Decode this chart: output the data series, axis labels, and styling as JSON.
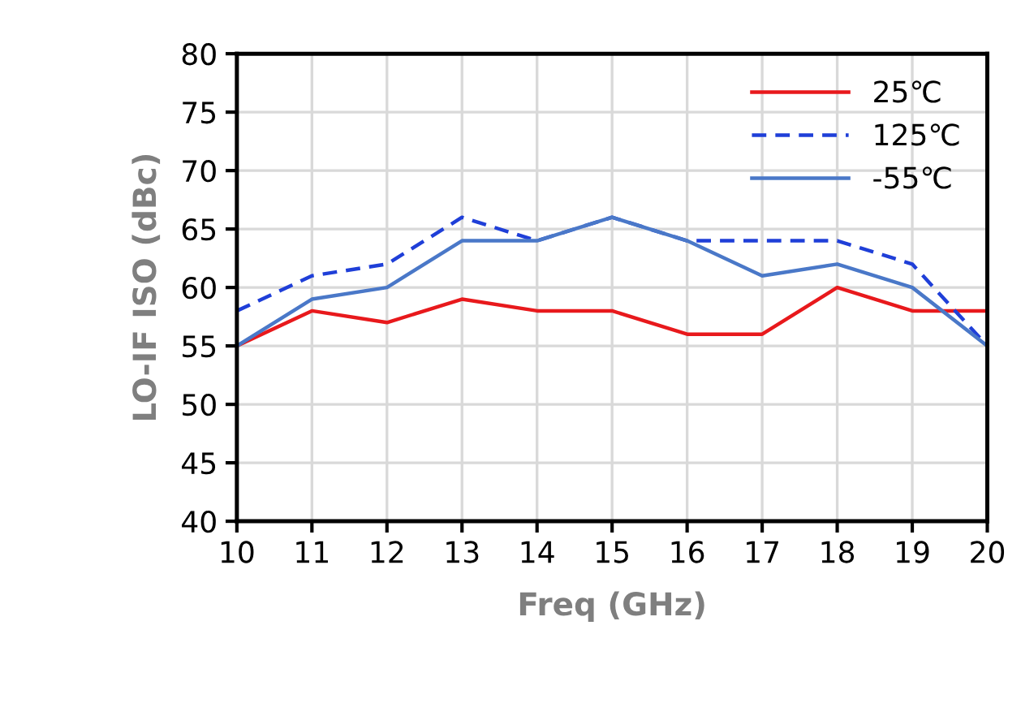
{
  "chart_data": {
    "type": "line",
    "xlabel": "Freq (GHz)",
    "ylabel": "LO-IF ISO (dBc)",
    "x": [
      10,
      11,
      12,
      13,
      14,
      15,
      16,
      17,
      18,
      19,
      20
    ],
    "series": [
      {
        "name": "25℃",
        "color": "#e8191c",
        "line_style": "solid",
        "values": [
          55,
          58,
          57,
          59,
          58,
          58,
          56,
          56,
          60,
          58,
          58
        ]
      },
      {
        "name": "125℃",
        "color": "#1f3fd8",
        "line_style": "dashed",
        "values": [
          58,
          61,
          62,
          66,
          64,
          66,
          64,
          64,
          64,
          62,
          55
        ]
      },
      {
        "name": "-55℃",
        "color": "#4a78c8",
        "line_style": "solid",
        "values": [
          55,
          59,
          60,
          64,
          64,
          66,
          64,
          61,
          62,
          60,
          55
        ]
      }
    ],
    "xlim": [
      10,
      20
    ],
    "xticks": [
      10,
      11,
      12,
      13,
      14,
      15,
      16,
      17,
      18,
      19,
      20
    ],
    "ylim": [
      40,
      80
    ],
    "yticks": [
      40,
      45,
      50,
      55,
      60,
      65,
      70,
      75,
      80
    ],
    "grid": true,
    "legend": "top right",
    "marker": "none"
  }
}
